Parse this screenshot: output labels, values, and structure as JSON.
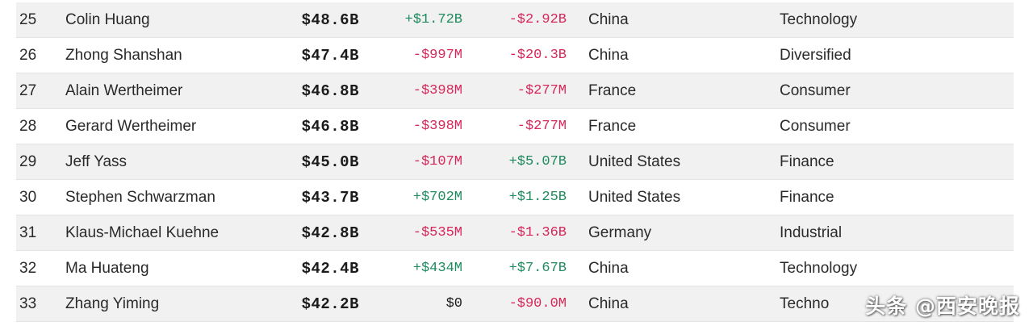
{
  "rows": [
    {
      "rank": "25",
      "name": "Colin Huang",
      "net_worth": "$48.6B",
      "last_change": "+$1.72B",
      "last_change_sign": "pos",
      "ytd_change": "-$2.92B",
      "ytd_change_sign": "neg",
      "country": "China",
      "industry": "Technology"
    },
    {
      "rank": "26",
      "name": "Zhong Shanshan",
      "net_worth": "$47.4B",
      "last_change": "-$997M",
      "last_change_sign": "neg",
      "ytd_change": "-$20.3B",
      "ytd_change_sign": "neg",
      "country": "China",
      "industry": "Diversified"
    },
    {
      "rank": "27",
      "name": "Alain Wertheimer",
      "net_worth": "$46.8B",
      "last_change": "-$398M",
      "last_change_sign": "neg",
      "ytd_change": "-$277M",
      "ytd_change_sign": "neg",
      "country": "France",
      "industry": "Consumer"
    },
    {
      "rank": "28",
      "name": "Gerard Wertheimer",
      "net_worth": "$46.8B",
      "last_change": "-$398M",
      "last_change_sign": "neg",
      "ytd_change": "-$277M",
      "ytd_change_sign": "neg",
      "country": "France",
      "industry": "Consumer"
    },
    {
      "rank": "29",
      "name": "Jeff Yass",
      "net_worth": "$45.0B",
      "last_change": "-$107M",
      "last_change_sign": "neg",
      "ytd_change": "+$5.07B",
      "ytd_change_sign": "pos",
      "country": "United States",
      "industry": "Finance"
    },
    {
      "rank": "30",
      "name": "Stephen Schwarzman",
      "net_worth": "$43.7B",
      "last_change": "+$702M",
      "last_change_sign": "pos",
      "ytd_change": "+$1.25B",
      "ytd_change_sign": "pos",
      "country": "United States",
      "industry": "Finance"
    },
    {
      "rank": "31",
      "name": "Klaus-Michael Kuehne",
      "net_worth": "$42.8B",
      "last_change": "-$535M",
      "last_change_sign": "neg",
      "ytd_change": "-$1.36B",
      "ytd_change_sign": "neg",
      "country": "Germany",
      "industry": "Industrial"
    },
    {
      "rank": "32",
      "name": "Ma Huateng",
      "net_worth": "$42.4B",
      "last_change": "+$434M",
      "last_change_sign": "pos",
      "ytd_change": "+$7.67B",
      "ytd_change_sign": "pos",
      "country": "China",
      "industry": "Technology"
    },
    {
      "rank": "33",
      "name": "Zhang Yiming",
      "net_worth": "$42.2B",
      "last_change": "$0",
      "last_change_sign": "zero",
      "ytd_change": "-$90.0M",
      "ytd_change_sign": "neg",
      "country": "China",
      "industry": "Techno"
    }
  ],
  "colors": {
    "positive": "#1e8a5e",
    "negative": "#d6265a",
    "row_shade": "#f1f1f1"
  },
  "watermark": "头条 @西安晚报"
}
